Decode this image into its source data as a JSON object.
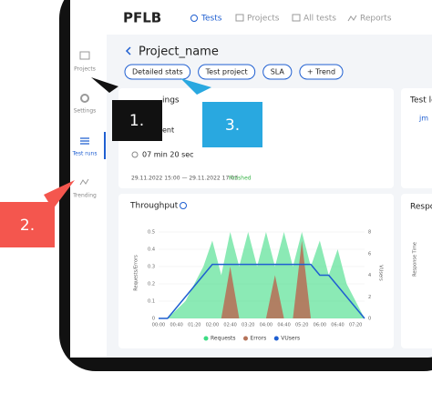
{
  "header": {
    "logo": "PFLB",
    "nav": [
      "Tests",
      "Projects",
      "All tests",
      "Reports"
    ]
  },
  "sidebar": [
    "Projects",
    "Settings",
    "Test runs",
    "Trending"
  ],
  "title": "Project_name",
  "tabs": [
    "Detailed stats",
    "Test project",
    "SLA",
    "+ Trend"
  ],
  "card": {
    "title": "ings",
    "subtitle": "ent",
    "duration": "07 min 20 sec",
    "period": "29.11.2022 15:00 — 29.11.2022 17:03",
    "status": "Finished"
  },
  "side_cards": [
    "Test le",
    "jm",
    "Respo",
    "Response Time"
  ],
  "callouts": [
    "1.",
    "2.",
    "3."
  ],
  "chart_data": {
    "type": "area",
    "title": "Throughput",
    "ylabel": "Requests/Errors",
    "y2label": "VUsers",
    "x": [
      0,
      20,
      40,
      60,
      80,
      100,
      120,
      140,
      160,
      180,
      200,
      220,
      240,
      260,
      280,
      300,
      320,
      340,
      360,
      380,
      400,
      420,
      440,
      460
    ],
    "xlim": [
      0,
      460
    ],
    "xticks": [
      {
        "value": 0,
        "label": "00:00"
      },
      {
        "value": 40,
        "label": "00:40"
      },
      {
        "value": 80,
        "label": "01:20"
      },
      {
        "value": 120,
        "label": "02:00"
      },
      {
        "value": 160,
        "label": "02:40"
      },
      {
        "value": 200,
        "label": "03:20"
      },
      {
        "value": 240,
        "label": "04:00"
      },
      {
        "value": 280,
        "label": "04:40"
      },
      {
        "value": 320,
        "label": "05:20"
      },
      {
        "value": 360,
        "label": "06:00"
      },
      {
        "value": 400,
        "label": "06:40"
      },
      {
        "value": 440,
        "label": "07:20"
      }
    ],
    "ylim": [
      0,
      0.5
    ],
    "yticks": [
      0,
      0.1,
      0.2,
      0.3,
      0.4,
      0.5
    ],
    "y2lim": [
      0,
      8
    ],
    "y2ticks": [
      0,
      2,
      4,
      6,
      8
    ],
    "series": [
      {
        "name": "Requests",
        "color": "#3ddc84",
        "values": [
          0,
          0,
          0.05,
          0.1,
          0.2,
          0.3,
          0.45,
          0.25,
          0.5,
          0.3,
          0.5,
          0.3,
          0.5,
          0.3,
          0.5,
          0.3,
          0.5,
          0.3,
          0.45,
          0.25,
          0.4,
          0.2,
          0.1,
          0
        ]
      },
      {
        "name": "Errors",
        "color": "#b5735a",
        "values": [
          0,
          0,
          0,
          0,
          0,
          0,
          0,
          0,
          0.3,
          0,
          0,
          0,
          0,
          0.25,
          0,
          0,
          0.45,
          0,
          0,
          0,
          0,
          0,
          0,
          0
        ]
      },
      {
        "name": "VUsers",
        "color": "#1f5fd1",
        "axis": "y2",
        "values": [
          0,
          0,
          1,
          2,
          3,
          4,
          5,
          5,
          5,
          5,
          5,
          5,
          5,
          5,
          5,
          5,
          5,
          5,
          4,
          4,
          3,
          2,
          1,
          0
        ]
      }
    ]
  }
}
